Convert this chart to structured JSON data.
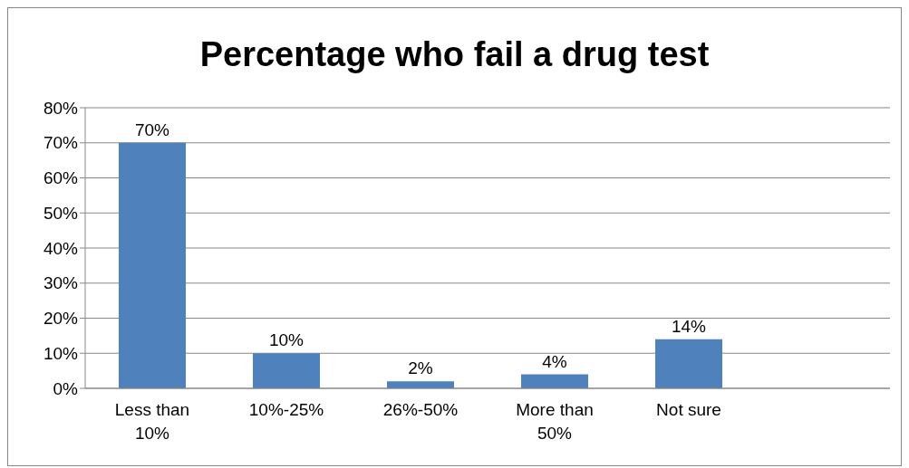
{
  "chart_data": {
    "type": "bar",
    "title": "Percentage who fail a drug test",
    "categories": [
      "Less than 10%",
      "10%-25%",
      "26%-50%",
      "More than 50%",
      "Not sure",
      null
    ],
    "values": [
      70,
      10,
      2,
      4,
      14,
      null
    ],
    "value_labels": [
      "70%",
      "10%",
      "2%",
      "4%",
      "14%",
      null
    ],
    "color": "#4f81bd",
    "ylim": [
      0,
      80
    ],
    "yticks": [
      {
        "value": 0,
        "label": "0%"
      },
      {
        "value": 10,
        "label": "10%"
      },
      {
        "value": 20,
        "label": "20%"
      },
      {
        "value": 30,
        "label": "30%"
      },
      {
        "value": 40,
        "label": "40%"
      },
      {
        "value": 50,
        "label": "50%"
      },
      {
        "value": 60,
        "label": "60%"
      },
      {
        "value": 70,
        "label": "70%"
      },
      {
        "value": 80,
        "label": "80%"
      }
    ],
    "grid": "y",
    "legend": false
  }
}
